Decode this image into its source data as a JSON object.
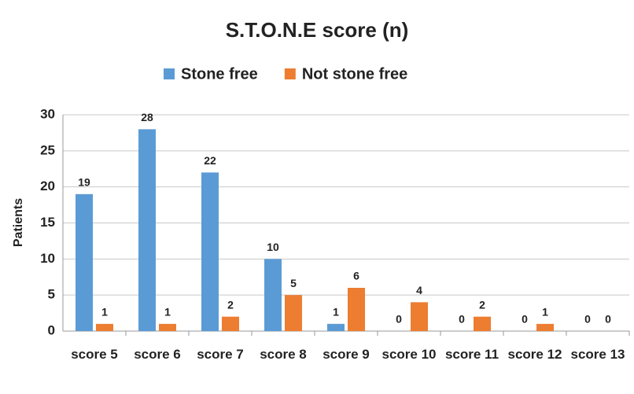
{
  "chart_data": {
    "type": "bar",
    "title": "S.T.O.N.E score (n)",
    "categories": [
      "score 5",
      "score 6",
      "score 7",
      "score 8",
      "score 9",
      "score 10",
      "score 11",
      "score 12",
      "score 13"
    ],
    "series": [
      {
        "name": "Stone free",
        "color": "#5b9bd5",
        "values": [
          19,
          28,
          22,
          10,
          1,
          0,
          0,
          0,
          0
        ]
      },
      {
        "name": "Not stone free",
        "color": "#ed7d31",
        "values": [
          1,
          1,
          2,
          5,
          6,
          4,
          2,
          1,
          0
        ]
      }
    ],
    "y_label": "Patients",
    "ylim": [
      0,
      30
    ],
    "yticks": [
      0,
      5,
      10,
      15,
      20,
      25,
      30
    ],
    "grid": true,
    "legend": "top"
  }
}
